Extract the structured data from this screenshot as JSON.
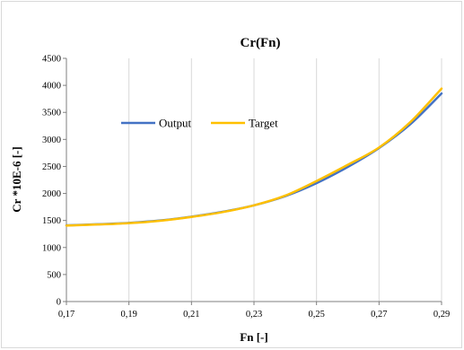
{
  "chart_data": {
    "type": "line",
    "title": "Cr(Fn)",
    "xlabel": "Fn [-]",
    "ylabel": "Cr *10E-6 [-]",
    "xlim": [
      0.17,
      0.29
    ],
    "ylim": [
      0,
      4500
    ],
    "x_ticks": [
      0.17,
      0.19,
      0.21,
      0.23,
      0.25,
      0.27,
      0.29
    ],
    "x_tick_labels": [
      "0,17",
      "0,19",
      "0,21",
      "0,23",
      "0,25",
      "0,27",
      "0,29"
    ],
    "y_ticks": [
      0,
      500,
      1000,
      1500,
      2000,
      2500,
      3000,
      3500,
      4000,
      4500
    ],
    "y_tick_labels": [
      "0",
      "500",
      "1000",
      "1500",
      "2000",
      "2500",
      "3000",
      "3500",
      "4000",
      "4500"
    ],
    "grid": "vertical",
    "legend_position": "inside-upper-left",
    "series": [
      {
        "name": "Output",
        "color": "#4472c4",
        "x": [
          0.17,
          0.18,
          0.19,
          0.2,
          0.21,
          0.22,
          0.23,
          0.24,
          0.25,
          0.26,
          0.27,
          0.28,
          0.29
        ],
        "y": [
          1410,
          1430,
          1455,
          1500,
          1570,
          1660,
          1780,
          1950,
          2190,
          2490,
          2840,
          3280,
          3850
        ]
      },
      {
        "name": "Target",
        "color": "#ffc000",
        "x": [
          0.17,
          0.18,
          0.19,
          0.2,
          0.21,
          0.22,
          0.23,
          0.24,
          0.25,
          0.26,
          0.27,
          0.28,
          0.29
        ],
        "y": [
          1405,
          1425,
          1450,
          1495,
          1565,
          1655,
          1780,
          1960,
          2230,
          2530,
          2850,
          3320,
          3940
        ]
      }
    ]
  }
}
